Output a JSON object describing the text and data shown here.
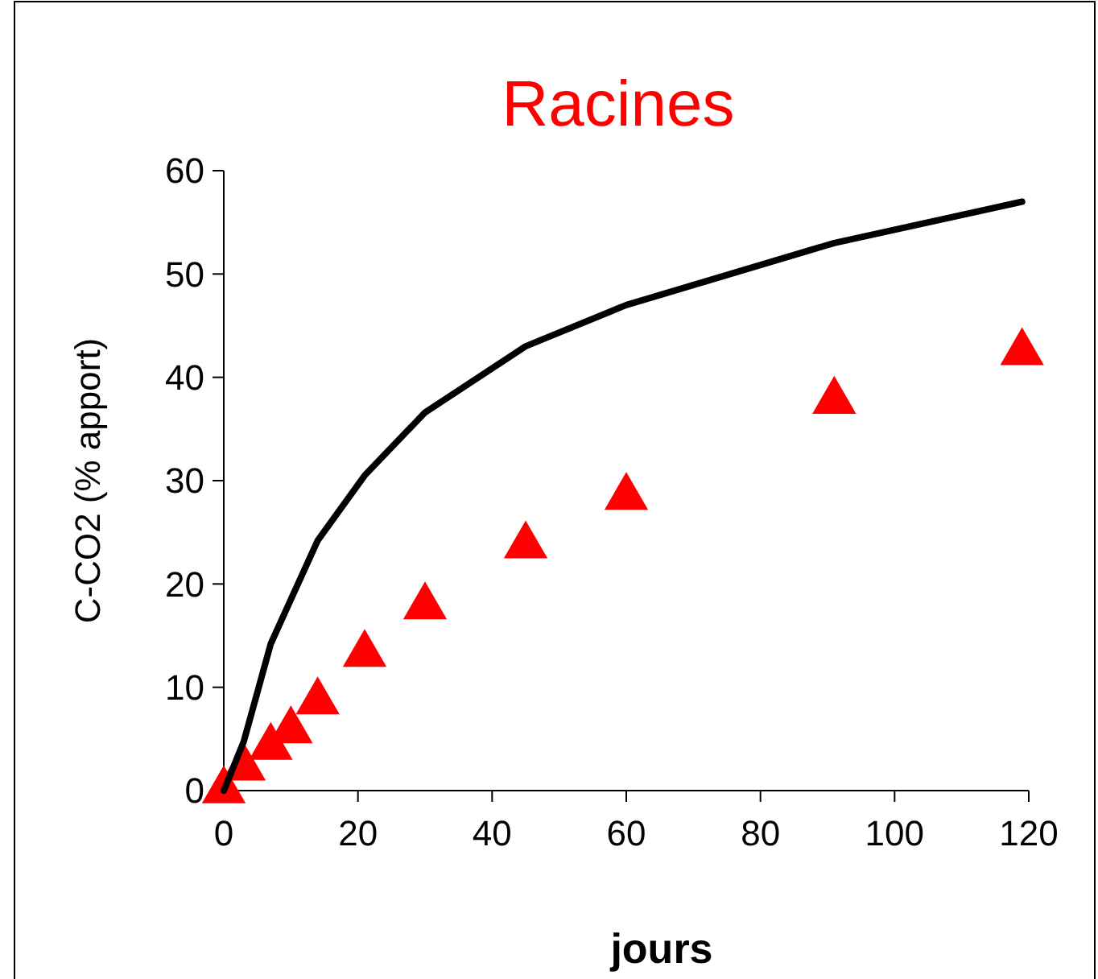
{
  "chart_data": {
    "type": "line",
    "title": "Racines",
    "xlabel": "jours",
    "ylabel": "C-CO2  (% apport)",
    "xlim": [
      0,
      120
    ],
    "xticks": [
      0,
      20,
      40,
      60,
      80,
      100,
      120
    ],
    "ylim": [
      0,
      60
    ],
    "yticks": [
      0,
      10,
      20,
      30,
      40,
      50,
      60
    ],
    "grid": false,
    "series": [
      {
        "color": "#000000",
        "marker": "none",
        "x": [
          0,
          3,
          7,
          10,
          14,
          21,
          30,
          45,
          60,
          91,
          119
        ],
        "values": [
          0,
          4.8,
          14.2,
          18.5,
          24.2,
          30.5,
          36.6,
          43,
          47,
          53,
          57
        ]
      },
      {
        "type": "scatter",
        "color": "#ff0000",
        "marker": "triangle",
        "x": [
          0,
          3,
          7,
          10,
          14,
          21,
          30,
          45,
          60,
          91,
          119
        ],
        "values": [
          0,
          2.2,
          4.2,
          5.8,
          8.6,
          13.2,
          17.8,
          23.7,
          28.4,
          37.7,
          42.4
        ]
      }
    ]
  }
}
